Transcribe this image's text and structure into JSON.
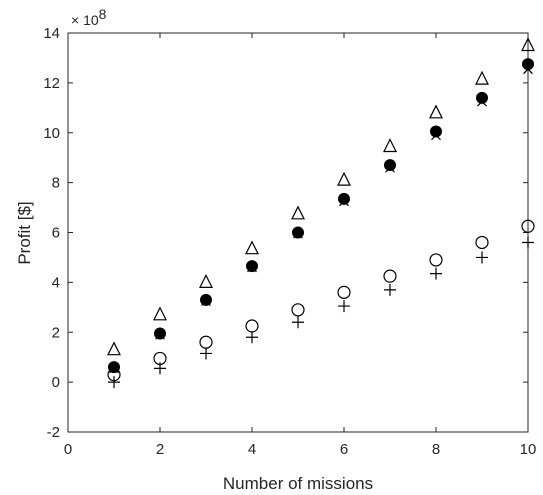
{
  "chart_data": {
    "type": "scatter",
    "title": "",
    "xlabel": "Number of missions",
    "ylabel": "Profit [$]",
    "y_exponent_label": "× 10",
    "y_exponent_power": "8",
    "xlim": [
      0,
      10
    ],
    "ylim": [
      -2,
      14
    ],
    "y_scale_factor": 100000000,
    "grid": false,
    "legend": "none",
    "x_ticks": [
      "0",
      "2",
      "4",
      "6",
      "8",
      "10"
    ],
    "y_ticks": [
      "-2",
      "0",
      "2",
      "4",
      "6",
      "8",
      "10",
      "12",
      "14"
    ],
    "x": [
      1,
      2,
      3,
      4,
      5,
      6,
      7,
      8,
      9,
      10
    ],
    "series": [
      {
        "marker": "triangle",
        "values": [
          1.3,
          2.7,
          4.0,
          5.35,
          6.75,
          8.1,
          9.45,
          10.8,
          12.15,
          13.5
        ]
      },
      {
        "marker": "filled-circle",
        "values": [
          0.6,
          1.95,
          3.3,
          4.65,
          6.0,
          7.35,
          8.7,
          10.05,
          11.4,
          12.75
        ]
      },
      {
        "marker": "x",
        "values": [
          0.55,
          1.9,
          3.25,
          4.6,
          5.95,
          7.25,
          8.6,
          9.9,
          11.25,
          12.55
        ]
      },
      {
        "marker": "open-circle",
        "values": [
          0.3,
          0.95,
          1.6,
          2.25,
          2.9,
          3.6,
          4.25,
          4.9,
          5.6,
          6.25
        ]
      },
      {
        "marker": "plus",
        "values": [
          0.0,
          0.55,
          1.15,
          1.8,
          2.4,
          3.05,
          3.7,
          4.35,
          5.0,
          5.6
        ]
      }
    ],
    "colors": {
      "axis": "#262626",
      "marker": "#000000",
      "background": "#ffffff"
    }
  }
}
